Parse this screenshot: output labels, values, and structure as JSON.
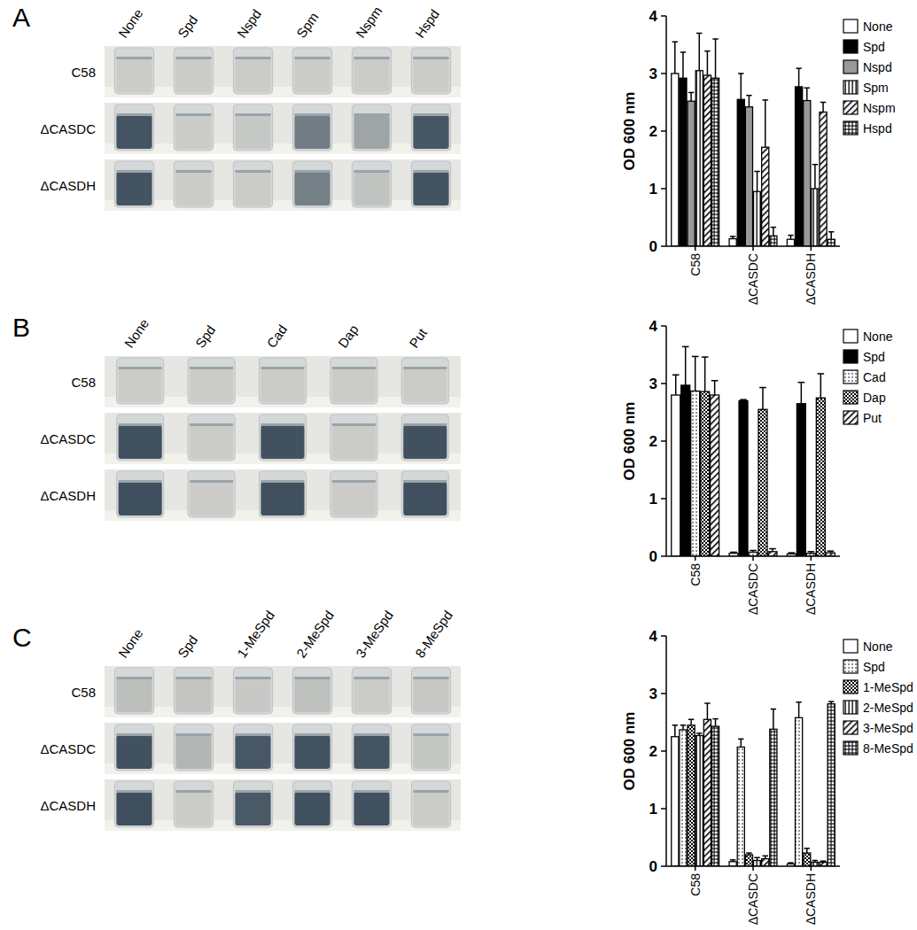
{
  "chart_data": [
    {
      "type": "bar",
      "title": "A",
      "y_label": "OD 600 nm",
      "categories": [
        "C58",
        "ΔCASDC",
        "ΔCASDH"
      ],
      "ylim": [
        0,
        4
      ],
      "yticks": [
        0,
        1,
        2,
        3,
        4
      ],
      "grid": false,
      "legend": "top-right",
      "series": [
        {
          "name": "None",
          "color": "#000000",
          "marker": "none",
          "values": [
            3.0,
            0.13,
            0.12
          ],
          "errors": [
            0.55,
            0.04,
            0.07
          ]
        },
        {
          "name": "Spd",
          "color": "#000000",
          "marker": "solid",
          "values": [
            2.92,
            2.55,
            2.77
          ],
          "errors": [
            0.45,
            0.45,
            0.32
          ]
        },
        {
          "name": "Nspd",
          "color": "#999999",
          "marker": "solid",
          "values": [
            2.52,
            2.42,
            2.53
          ],
          "errors": [
            0.15,
            0.2,
            0.22
          ]
        },
        {
          "name": "Spm",
          "color": "#000000",
          "marker": "vertical",
          "values": [
            3.05,
            0.95,
            1.0
          ],
          "errors": [
            0.65,
            0.35,
            0.42
          ]
        },
        {
          "name": "Nspm",
          "color": "#000000",
          "marker": "diagonal",
          "values": [
            2.97,
            1.72,
            2.33
          ],
          "errors": [
            0.42,
            0.82,
            0.17
          ]
        },
        {
          "name": "Hspd",
          "color": "#000000",
          "marker": "grid",
          "values": [
            2.92,
            0.18,
            0.12
          ],
          "errors": [
            0.68,
            0.15,
            0.13
          ]
        }
      ]
    },
    {
      "type": "bar",
      "title": "B",
      "y_label": "OD 600 nm",
      "categories": [
        "C58",
        "ΔCASDC",
        "ΔCASDH"
      ],
      "ylim": [
        0,
        4
      ],
      "yticks": [
        0,
        1,
        2,
        3,
        4
      ],
      "grid": false,
      "legend": "top-right",
      "series": [
        {
          "name": "None",
          "color": "#000000",
          "marker": "none",
          "values": [
            2.8,
            0.05,
            0.04
          ],
          "errors": [
            0.35,
            0.02,
            0.02
          ]
        },
        {
          "name": "Spd",
          "color": "#000000",
          "marker": "solid",
          "values": [
            2.97,
            2.7,
            2.65
          ],
          "errors": [
            0.67,
            0.02,
            0.37
          ]
        },
        {
          "name": "Cad",
          "color": "#000000",
          "marker": "dots",
          "values": [
            2.87,
            0.07,
            0.05
          ],
          "errors": [
            0.6,
            0.03,
            0.03
          ]
        },
        {
          "name": "Dap",
          "color": "#000000",
          "marker": "checker",
          "values": [
            2.86,
            2.55,
            2.75
          ],
          "errors": [
            0.6,
            0.38,
            0.42
          ]
        },
        {
          "name": "Put",
          "color": "#000000",
          "marker": "diagonal",
          "values": [
            2.8,
            0.08,
            0.06
          ],
          "errors": [
            0.25,
            0.05,
            0.03
          ]
        }
      ]
    },
    {
      "type": "bar",
      "title": "C",
      "y_label": "OD 600 nm",
      "categories": [
        "C58",
        "ΔCASDC",
        "ΔCASDH"
      ],
      "ylim": [
        0,
        4
      ],
      "yticks": [
        0,
        1,
        2,
        3,
        4
      ],
      "grid": false,
      "legend": "top-right",
      "series": [
        {
          "name": "None",
          "color": "#000000",
          "marker": "none",
          "values": [
            2.25,
            0.08,
            0.04
          ],
          "errors": [
            0.2,
            0.03,
            0.02
          ]
        },
        {
          "name": "Spd",
          "color": "#000000",
          "marker": "dots",
          "values": [
            2.37,
            2.07,
            2.58
          ],
          "errors": [
            0.08,
            0.14,
            0.27
          ]
        },
        {
          "name": "1-MeSpd",
          "color": "#000000",
          "marker": "checker",
          "values": [
            2.45,
            0.2,
            0.23
          ],
          "errors": [
            0.1,
            0.03,
            0.08
          ]
        },
        {
          "name": "2-MeSpd",
          "color": "#000000",
          "marker": "vertical",
          "values": [
            2.27,
            0.1,
            0.07
          ],
          "errors": [
            0.04,
            0.05,
            0.03
          ]
        },
        {
          "name": "3-MeSpd",
          "color": "#000000",
          "marker": "diagonal",
          "values": [
            2.55,
            0.13,
            0.07
          ],
          "errors": [
            0.28,
            0.05,
            0.02
          ]
        },
        {
          "name": "8-MeSpd",
          "color": "#000000",
          "marker": "grid",
          "values": [
            2.43,
            2.38,
            2.82
          ],
          "errors": [
            0.13,
            0.35,
            0.04
          ]
        }
      ]
    }
  ]
}
